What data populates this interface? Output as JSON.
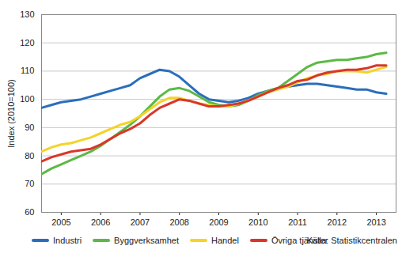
{
  "chart_data": {
    "type": "line",
    "y_label": "Index (2010=100)",
    "source": "Källa: Statistikcentralen",
    "x": [
      2005,
      2005.25,
      2005.5,
      2005.75,
      2006,
      2006.25,
      2006.5,
      2006.75,
      2007,
      2007.25,
      2007.5,
      2007.75,
      2008,
      2008.25,
      2008.5,
      2008.75,
      2009,
      2009.25,
      2009.5,
      2009.75,
      2010,
      2010.25,
      2010.5,
      2010.75,
      2011,
      2011.25,
      2011.5,
      2011.75,
      2012,
      2012.25,
      2012.5,
      2012.75,
      2013,
      2013.25,
      2013.5,
      2013.75
    ],
    "series": [
      {
        "name": "Industri",
        "color": "#2a6ebb",
        "values": [
          97,
          98,
          99,
          99.5,
          100,
          101,
          102,
          103,
          104,
          105,
          107.5,
          109,
          110.5,
          110,
          108,
          105,
          102,
          100,
          99.5,
          99,
          99.5,
          100.5,
          102,
          103,
          104,
          104.5,
          105,
          105.5,
          105.5,
          105,
          104.5,
          104,
          103.5,
          103.5,
          102.5,
          102
        ]
      },
      {
        "name": "Byggverksamhet",
        "color": "#5cb946",
        "values": [
          73.5,
          75.5,
          77,
          78.5,
          80,
          81.5,
          83.5,
          86,
          88.5,
          91,
          94,
          97.5,
          101,
          103.5,
          104,
          103,
          101,
          99,
          98,
          97.5,
          98,
          99.5,
          101.5,
          103,
          104,
          106.5,
          109,
          111.5,
          113,
          113.5,
          114,
          114,
          114.5,
          115,
          116,
          116.5
        ]
      },
      {
        "name": "Handel",
        "color": "#f5d327",
        "values": [
          81.5,
          83,
          84,
          84.5,
          85.5,
          86.5,
          88,
          89.5,
          91,
          92,
          94,
          96.5,
          99,
          100.5,
          100.5,
          99.5,
          98.5,
          98,
          97.5,
          97.5,
          98.5,
          99.5,
          101,
          102.5,
          103.5,
          104.5,
          106,
          107.5,
          108.5,
          109,
          110,
          110,
          110,
          109.5,
          110.5,
          111.5
        ]
      },
      {
        "name": "Övriga tjänster",
        "color": "#d9372b",
        "values": [
          78,
          79.5,
          80.5,
          81.5,
          82,
          82.5,
          84,
          86,
          88,
          89.5,
          91.5,
          94.5,
          97,
          98.5,
          100,
          99.5,
          98.5,
          97.5,
          97.5,
          98,
          98.5,
          99.5,
          101,
          102.5,
          104,
          105,
          106.5,
          107,
          108.5,
          109.5,
          110,
          110.5,
          110.5,
          111,
          112,
          112
        ]
      }
    ],
    "xlim": [
      2005,
      2014
    ],
    "xticks": [
      {
        "value": 2005.5,
        "label": "2005"
      },
      {
        "value": 2006.5,
        "label": "2006"
      },
      {
        "value": 2007.5,
        "label": "2007"
      },
      {
        "value": 2008.5,
        "label": "2008"
      },
      {
        "value": 2009.5,
        "label": "2009"
      },
      {
        "value": 2010.5,
        "label": "2010"
      },
      {
        "value": 2011.5,
        "label": "2011"
      },
      {
        "value": 2012.5,
        "label": "2012"
      },
      {
        "value": 2013.5,
        "label": "2013"
      }
    ],
    "ylim": [
      60,
      130
    ],
    "yticks": [
      60,
      70,
      80,
      90,
      100,
      110,
      120,
      130
    ],
    "grid": true,
    "legend": "bottom"
  }
}
